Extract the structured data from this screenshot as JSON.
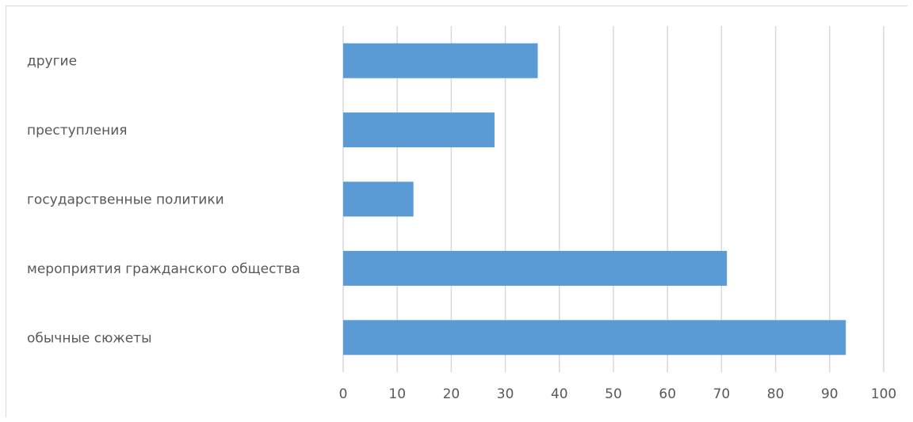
{
  "chart_data": {
    "type": "bar",
    "orientation": "horizontal",
    "categories": [
      "другие",
      "преступления",
      "государственные политики",
      "мероприятия гражданского общества",
      "обычные сюжеты"
    ],
    "values": [
      36,
      28,
      13,
      71,
      93
    ],
    "xlim": [
      0,
      100
    ],
    "xticks": [
      "0",
      "10",
      "20",
      "30",
      "40",
      "50",
      "60",
      "70",
      "80",
      "90",
      "100"
    ],
    "title": "",
    "xlabel": "",
    "ylabel": "",
    "grid": "vertical",
    "legend": "none",
    "bar_color": "#5b9bd5",
    "gridline_color": "#d9d9d9",
    "label_color": "#595959"
  }
}
